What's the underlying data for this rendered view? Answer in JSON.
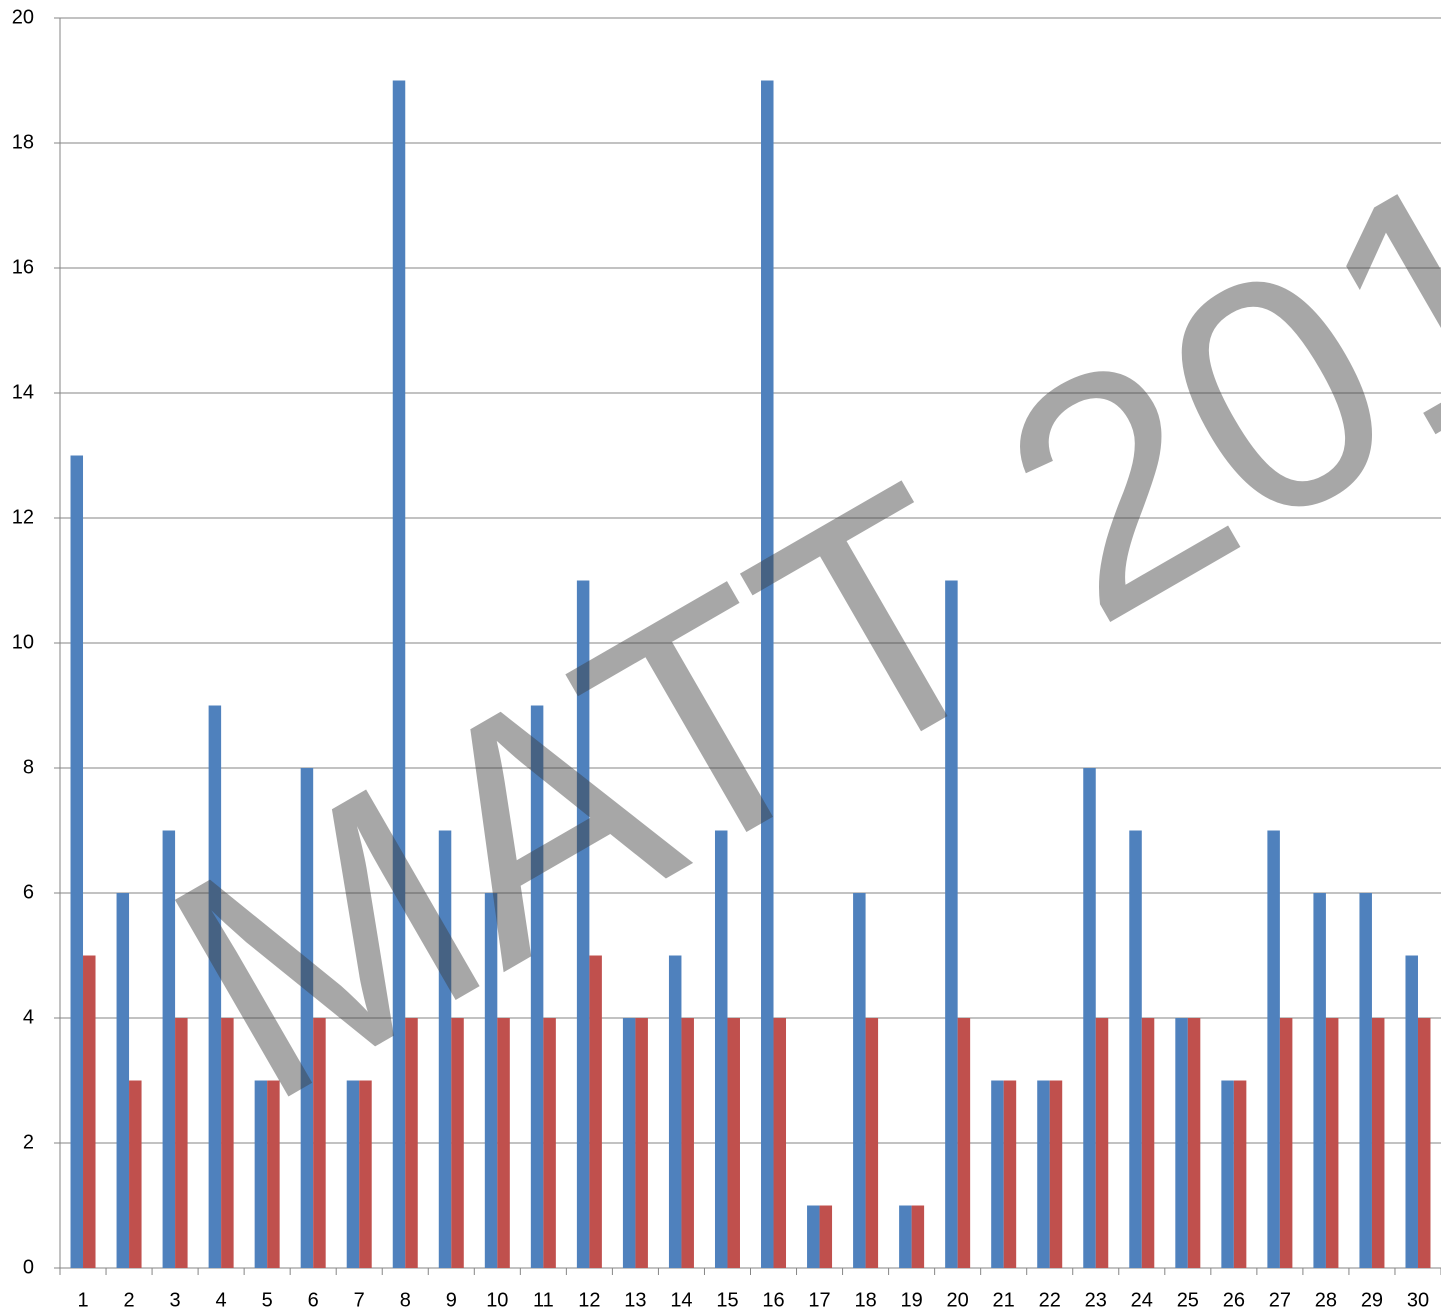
{
  "chart_data": {
    "type": "bar",
    "categories": [
      "1",
      "2",
      "3",
      "4",
      "5",
      "6",
      "7",
      "8",
      "9",
      "10",
      "11",
      "12",
      "13",
      "14",
      "15",
      "16",
      "17",
      "18",
      "19",
      "20",
      "21",
      "22",
      "23",
      "24",
      "25",
      "26",
      "27",
      "28",
      "29",
      "30"
    ],
    "series": [
      {
        "color": "#4f81bd",
        "values": [
          13,
          6,
          7,
          9,
          3,
          8,
          3,
          19,
          7,
          6,
          9,
          11,
          4,
          5,
          7,
          19,
          1,
          6,
          1,
          11,
          3,
          3,
          8,
          7,
          4,
          3,
          7,
          6,
          6,
          5
        ]
      },
      {
        "color": "#c0504d",
        "values": [
          5,
          3,
          4,
          4,
          3,
          4,
          3,
          4,
          4,
          4,
          4,
          5,
          4,
          4,
          4,
          4,
          1,
          4,
          1,
          4,
          3,
          3,
          4,
          4,
          4,
          3,
          4,
          4,
          4,
          4
        ]
      }
    ],
    "ylim": [
      0,
      20
    ],
    "yticks": [
      0,
      2,
      4,
      6,
      8,
      10,
      12,
      14,
      16,
      18,
      20
    ],
    "grid": true,
    "annotations": [
      "MATT 201"
    ]
  }
}
